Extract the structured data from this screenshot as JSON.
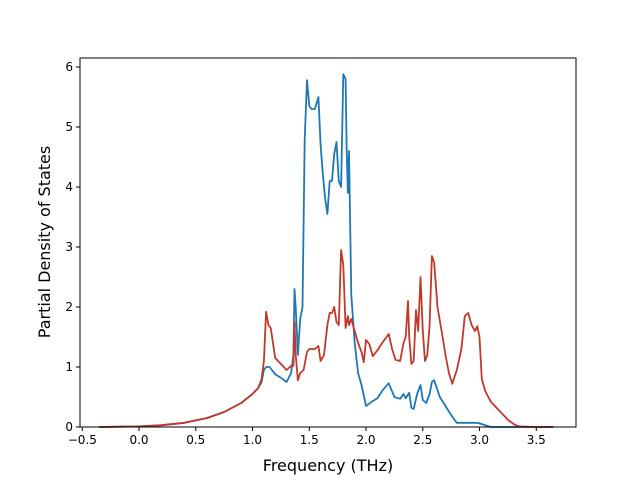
{
  "chart_data": {
    "type": "line",
    "title": "",
    "xlabel": "Frequency (THz)",
    "ylabel": "Partial Density of States",
    "xlim": [
      -0.52,
      3.85
    ],
    "ylim": [
      0,
      6.15
    ],
    "xticks": [
      -0.5,
      0.0,
      0.5,
      1.0,
      1.5,
      2.0,
      2.5,
      3.0,
      3.5
    ],
    "xtick_labels": [
      "−0.5",
      "0.0",
      "0.5",
      "1.0",
      "1.5",
      "2.0",
      "2.5",
      "3.0",
      "3.5"
    ],
    "yticks": [
      0,
      1,
      2,
      3,
      4,
      5,
      6
    ],
    "ytick_labels": [
      "0",
      "1",
      "2",
      "3",
      "4",
      "5",
      "6"
    ],
    "grid": false,
    "legend": "none",
    "series": [
      {
        "color": "#1f77b4",
        "x": [
          -0.35,
          0.0,
          0.2,
          0.4,
          0.6,
          0.75,
          0.9,
          1.0,
          1.05,
          1.08,
          1.1,
          1.12,
          1.15,
          1.2,
          1.25,
          1.3,
          1.34,
          1.36,
          1.37,
          1.38,
          1.4,
          1.42,
          1.44,
          1.46,
          1.48,
          1.5,
          1.52,
          1.55,
          1.58,
          1.6,
          1.62,
          1.64,
          1.66,
          1.68,
          1.7,
          1.72,
          1.74,
          1.76,
          1.78,
          1.8,
          1.82,
          1.83,
          1.84,
          1.85,
          1.87,
          1.9,
          1.93,
          1.96,
          2.0,
          2.05,
          2.1,
          2.15,
          2.2,
          2.25,
          2.3,
          2.33,
          2.35,
          2.38,
          2.4,
          2.42,
          2.45,
          2.48,
          2.5,
          2.53,
          2.56,
          2.58,
          2.6,
          2.65,
          2.7,
          2.75,
          2.8,
          2.85,
          2.9,
          2.95,
          2.97,
          3.0,
          3.1,
          3.2,
          3.3,
          3.5,
          3.65
        ],
        "y": [
          0,
          0.01,
          0.03,
          0.07,
          0.15,
          0.25,
          0.4,
          0.55,
          0.65,
          0.75,
          0.95,
          1.0,
          1.0,
          0.88,
          0.82,
          0.75,
          0.9,
          1.2,
          2.3,
          2.0,
          1.2,
          1.8,
          2.0,
          4.8,
          5.78,
          5.35,
          5.3,
          5.3,
          5.5,
          4.7,
          4.2,
          3.8,
          3.55,
          4.1,
          4.1,
          4.55,
          4.75,
          4.1,
          4.0,
          5.88,
          5.8,
          4.6,
          3.9,
          4.6,
          2.2,
          1.4,
          0.9,
          0.7,
          0.35,
          0.42,
          0.48,
          0.62,
          0.73,
          0.5,
          0.47,
          0.55,
          0.48,
          0.57,
          0.32,
          0.3,
          0.55,
          0.7,
          0.45,
          0.4,
          0.55,
          0.75,
          0.78,
          0.5,
          0.35,
          0.2,
          0.07,
          0.07,
          0.07,
          0.07,
          0.07,
          0.06,
          0,
          0,
          0,
          0,
          0
        ]
      },
      {
        "color": "#c0392b",
        "x": [
          -0.35,
          0.0,
          0.2,
          0.4,
          0.6,
          0.75,
          0.9,
          1.0,
          1.05,
          1.08,
          1.1,
          1.12,
          1.14,
          1.16,
          1.18,
          1.2,
          1.25,
          1.3,
          1.34,
          1.36,
          1.37,
          1.38,
          1.4,
          1.42,
          1.45,
          1.48,
          1.5,
          1.55,
          1.58,
          1.6,
          1.63,
          1.66,
          1.68,
          1.7,
          1.72,
          1.74,
          1.76,
          1.78,
          1.8,
          1.82,
          1.84,
          1.85,
          1.87,
          1.9,
          1.93,
          1.96,
          1.98,
          2.0,
          2.03,
          2.06,
          2.1,
          2.15,
          2.2,
          2.23,
          2.26,
          2.3,
          2.33,
          2.35,
          2.37,
          2.38,
          2.4,
          2.42,
          2.44,
          2.46,
          2.48,
          2.5,
          2.52,
          2.54,
          2.56,
          2.58,
          2.6,
          2.63,
          2.67,
          2.7,
          2.73,
          2.76,
          2.8,
          2.84,
          2.87,
          2.9,
          2.93,
          2.96,
          2.98,
          3.0,
          3.02,
          3.05,
          3.1,
          3.15,
          3.2,
          3.25,
          3.3,
          3.32,
          3.35,
          3.5,
          3.65
        ],
        "y": [
          0,
          0.01,
          0.03,
          0.07,
          0.15,
          0.25,
          0.4,
          0.55,
          0.65,
          0.8,
          1.1,
          1.92,
          1.7,
          1.65,
          1.4,
          1.15,
          1.05,
          0.95,
          1.02,
          1.02,
          1.75,
          1.2,
          0.78,
          0.9,
          0.95,
          1.25,
          1.3,
          1.3,
          1.35,
          1.1,
          1.2,
          1.7,
          1.9,
          1.9,
          2.0,
          1.75,
          1.7,
          2.95,
          2.7,
          1.65,
          1.85,
          1.7,
          1.8,
          1.6,
          1.4,
          1.25,
          1.08,
          1.45,
          1.38,
          1.18,
          1.28,
          1.42,
          1.55,
          1.3,
          1.12,
          1.1,
          1.4,
          1.5,
          2.1,
          1.5,
          1.05,
          1.1,
          1.95,
          1.6,
          2.5,
          1.6,
          1.1,
          1.2,
          1.7,
          2.85,
          2.75,
          2.0,
          1.55,
          1.2,
          0.9,
          0.72,
          0.95,
          1.3,
          1.85,
          1.9,
          1.7,
          1.6,
          1.68,
          1.5,
          0.8,
          0.6,
          0.42,
          0.32,
          0.22,
          0.12,
          0.05,
          0.03,
          0.01,
          0,
          0
        ]
      }
    ]
  }
}
